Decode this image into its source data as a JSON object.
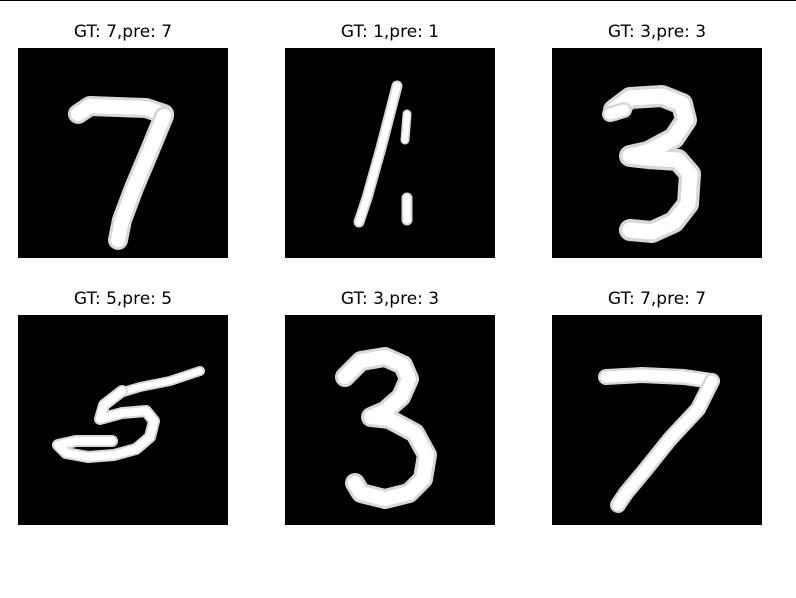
{
  "figure": {
    "panels": [
      {
        "title": "GT: 7,pre: 7",
        "digit": "seven"
      },
      {
        "title": "GT: 1,pre: 1",
        "digit": "one"
      },
      {
        "title": "GT: 3,pre: 3",
        "digit": "three"
      },
      {
        "title": "GT: 5,pre: 5",
        "digit": "five"
      },
      {
        "title": "GT: 3,pre: 3",
        "digit": "three"
      },
      {
        "title": "GT: 7,pre: 7",
        "digit": "seven"
      }
    ]
  }
}
